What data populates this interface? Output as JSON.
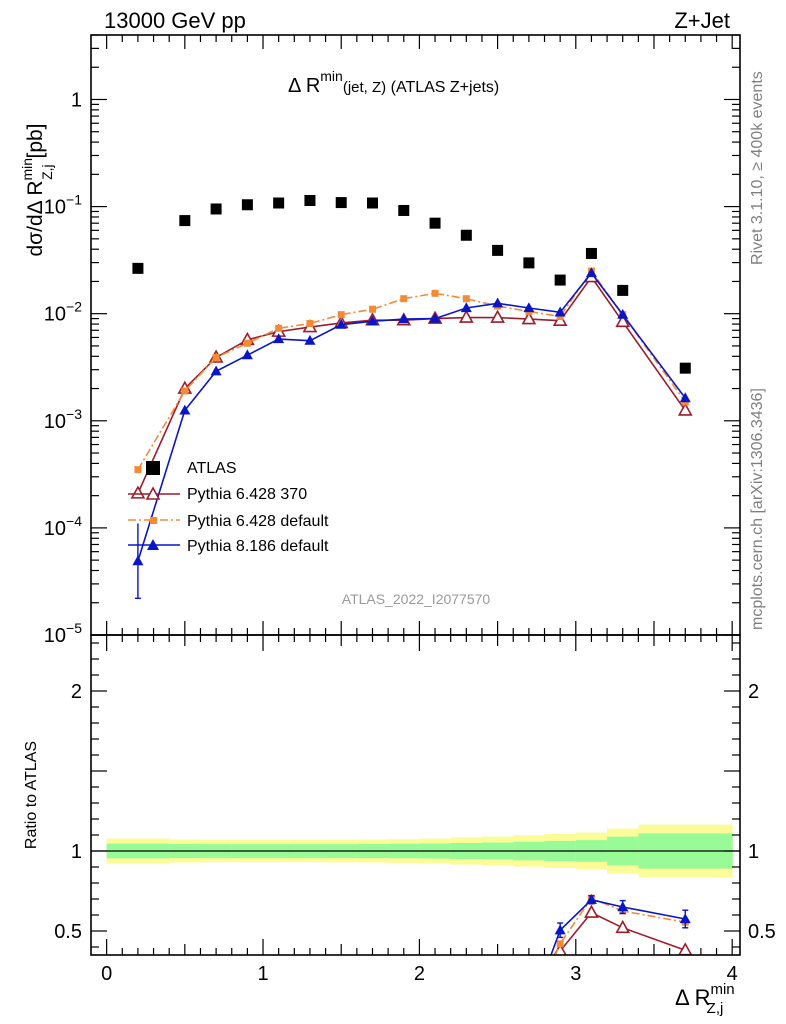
{
  "header": {
    "left": "13000 GeV pp",
    "right": "Z+Jet"
  },
  "side_labels": {
    "rivet": "Rivet 3.1.10, ≥ 400k events",
    "mcplots": "mcplots.cern.ch [arXiv:1306.3436]"
  },
  "chart_data": [
    {
      "type": "scatter",
      "panel": "main",
      "title_main": "Δ R",
      "title_sup": "min",
      "title_sub": "(jet, Z)",
      "title_tail": "(ATLAS Z+jets)",
      "ylabel_main": "dσ/dΔ R",
      "ylabel_sup": "min",
      "ylabel_sub": "Z,j",
      "ylabel_unit": "[pb]",
      "yscale": "log",
      "ylim": [
        1e-05,
        4.0
      ],
      "xlim": [
        -0.1,
        4.05
      ],
      "ytick_labels": [
        {
          "base": "10",
          "exp": "−5",
          "value": 1e-05
        },
        {
          "base": "10",
          "exp": "−4",
          "value": 0.0001
        },
        {
          "base": "10",
          "exp": "−3",
          "value": 0.001
        },
        {
          "base": "10",
          "exp": "−2",
          "value": 0.01
        },
        {
          "base": "10",
          "exp": "−1",
          "value": 0.1
        },
        {
          "base": "1",
          "exp": "",
          "value": 1
        }
      ],
      "watermark": "ATLAS_2022_I2077570",
      "legend_position": "center-left",
      "series": [
        {
          "name": "ATLAS",
          "style": "data",
          "color": "#000000",
          "x": [
            0.2,
            0.5,
            0.7,
            0.9,
            1.1,
            1.3,
            1.5,
            1.7,
            1.9,
            2.1,
            2.3,
            2.5,
            2.7,
            2.9,
            3.1,
            3.3,
            3.7
          ],
          "y": [
            0.0265,
            0.074,
            0.095,
            0.104,
            0.108,
            0.114,
            0.109,
            0.108,
            0.092,
            0.07,
            0.054,
            0.039,
            0.0298,
            0.0206,
            0.0365,
            0.0165,
            0.0031
          ]
        },
        {
          "name": "Pythia 6.428 370",
          "style": "open-triangle",
          "color": "#9c1c2c",
          "x": [
            0.2,
            0.5,
            0.7,
            0.9,
            1.1,
            1.3,
            1.5,
            1.7,
            1.9,
            2.1,
            2.3,
            2.5,
            2.7,
            2.9,
            3.1,
            3.3,
            3.7
          ],
          "y": [
            0.00021,
            0.002,
            0.0039,
            0.0057,
            0.0068,
            0.0075,
            0.0082,
            0.0087,
            0.0087,
            0.009,
            0.0092,
            0.0092,
            0.0089,
            0.0086,
            0.022,
            0.0084,
            0.00125
          ]
        },
        {
          "name": "Pythia 6.428 default",
          "style": "square-dashdot",
          "color": "#f58a35",
          "x": [
            0.2,
            0.5,
            0.7,
            0.9,
            1.1,
            1.3,
            1.5,
            1.7,
            1.9,
            2.1,
            2.3,
            2.5,
            2.7,
            2.9,
            3.1,
            3.3,
            3.7
          ],
          "y": [
            0.00035,
            0.0019,
            0.0039,
            0.0053,
            0.0073,
            0.0081,
            0.0098,
            0.011,
            0.0138,
            0.0155,
            0.0138,
            0.0118,
            0.0105,
            0.0094,
            0.025,
            0.0098,
            0.0015
          ]
        },
        {
          "name": "Pythia 8.186 default",
          "style": "filled-triangle",
          "color": "#0a15c8",
          "x": [
            0.2,
            0.5,
            0.7,
            0.9,
            1.1,
            1.3,
            1.5,
            1.7,
            1.9,
            2.1,
            2.3,
            2.5,
            2.7,
            2.9,
            3.1,
            3.3,
            3.7
          ],
          "y": [
            4.9e-05,
            0.00125,
            0.0029,
            0.0041,
            0.0058,
            0.0056,
            0.0079,
            0.0085,
            0.0089,
            0.009,
            0.0113,
            0.0125,
            0.0113,
            0.0103,
            0.024,
            0.0098,
            0.00163
          ],
          "err_low": [
            2.2e-05,
            null,
            null,
            null,
            null,
            null,
            null,
            null,
            null,
            null,
            null,
            null,
            null,
            null,
            null,
            null,
            null
          ],
          "err_high": [
            0.00011,
            null,
            null,
            null,
            null,
            null,
            null,
            null,
            null,
            null,
            null,
            null,
            null,
            null,
            null,
            null,
            null
          ]
        }
      ]
    },
    {
      "type": "line",
      "panel": "ratio",
      "ylabel": "Ratio to ATLAS",
      "ylim": [
        0.35,
        2.35
      ],
      "xlim": [
        -0.1,
        4.05
      ],
      "yticks": [
        0.5,
        1,
        2
      ],
      "ytick_labels": [
        "0.5",
        "1",
        "2"
      ],
      "xticks": [
        0,
        1,
        2,
        3,
        4
      ],
      "xtick_labels": [
        "0",
        "1",
        "2",
        "3",
        "4"
      ],
      "xlabel_main": "Δ R",
      "xlabel_sup": "min",
      "xlabel_sub": "Z,j",
      "bands": {
        "edges": [
          0.0,
          0.4,
          0.6,
          0.8,
          1.0,
          1.2,
          1.4,
          1.6,
          1.8,
          2.0,
          2.2,
          2.4,
          2.6,
          2.8,
          3.0,
          3.2,
          3.4,
          4.0
        ],
        "inner": [
          0.046,
          0.044,
          0.043,
          0.043,
          0.043,
          0.043,
          0.043,
          0.044,
          0.045,
          0.047,
          0.05,
          0.053,
          0.058,
          0.063,
          0.068,
          0.09,
          0.11
        ],
        "outer": [
          0.078,
          0.072,
          0.07,
          0.07,
          0.07,
          0.07,
          0.071,
          0.072,
          0.074,
          0.078,
          0.085,
          0.09,
          0.098,
          0.106,
          0.115,
          0.14,
          0.165
        ],
        "inner_color": "#98fb98",
        "outer_color": "#fbfb98"
      },
      "series": [
        {
          "name": "Pythia 6.428 370",
          "color": "#9c1c2c",
          "x": [
            2.9,
            3.1,
            3.3,
            3.7
          ],
          "y": [
            0.375,
            0.615,
            0.52,
            0.38
          ]
        },
        {
          "name": "Pythia 6.428 default",
          "color": "#f58a35",
          "x": [
            2.9,
            3.1,
            3.3,
            3.7
          ],
          "y": [
            0.42,
            0.705,
            0.625,
            0.555
          ]
        },
        {
          "name": "Pythia 8.186 default",
          "color": "#0a15c8",
          "x": [
            2.9,
            3.1,
            3.3,
            3.7
          ],
          "y": [
            0.505,
            0.695,
            0.65,
            0.575
          ],
          "err": [
            0.045,
            0.025,
            0.04,
            0.055
          ]
        }
      ]
    }
  ]
}
